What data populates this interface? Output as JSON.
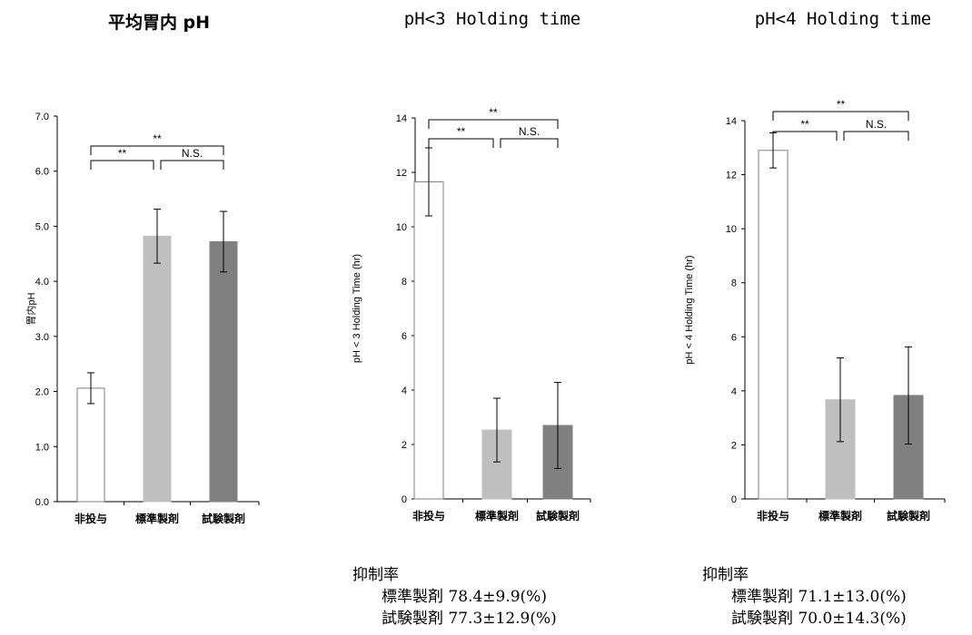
{
  "chart_data": [
    {
      "type": "bar",
      "title": "平均胃内 pH",
      "ylabel": "胃内pH",
      "xlabel": "",
      "categories": [
        "非投与",
        "標準製剤",
        "試験製剤"
      ],
      "values": [
        2.06,
        4.82,
        4.72
      ],
      "errors": [
        0.28,
        0.49,
        0.55
      ],
      "bar_colors": [
        "#ffffff",
        "#bfbfbf",
        "#808080"
      ],
      "ylim": [
        0,
        7
      ],
      "yticks": [
        0,
        1,
        2,
        3,
        4,
        5,
        6,
        7
      ],
      "ytick_labels": [
        "0.0",
        "1.0",
        "2.0",
        "3.0",
        "4.0",
        "5.0",
        "6.0",
        "7.0"
      ],
      "significance": [
        {
          "from": 0,
          "to": 1,
          "label": "**",
          "level": 0
        },
        {
          "from": 1,
          "to": 2,
          "label": "N.S.",
          "level": 0
        },
        {
          "from": 0,
          "to": 2,
          "label": "**",
          "level": 1
        }
      ]
    },
    {
      "type": "bar",
      "title": "pH<3 Holding time",
      "ylabel": "pH < 3 Holding Time (hr)",
      "xlabel": "",
      "categories": [
        "非投与",
        "標準製剤",
        "試験製剤"
      ],
      "values": [
        11.65,
        2.53,
        2.7
      ],
      "errors": [
        1.25,
        1.17,
        1.58
      ],
      "bar_colors": [
        "#ffffff",
        "#bfbfbf",
        "#808080"
      ],
      "ylim": [
        0,
        14
      ],
      "yticks": [
        0,
        2,
        4,
        6,
        8,
        10,
        12,
        14
      ],
      "ytick_labels": [
        "0",
        "2",
        "4",
        "6",
        "8",
        "10",
        "12",
        "14"
      ],
      "significance": [
        {
          "from": 0,
          "to": 1,
          "label": "**",
          "level": 0
        },
        {
          "from": 1,
          "to": 2,
          "label": "N.S.",
          "level": 0
        },
        {
          "from": 0,
          "to": 2,
          "label": "**",
          "level": 1
        }
      ]
    },
    {
      "type": "bar",
      "title": "pH<4 Holding time",
      "ylabel": "pH < 4 Holding Time (hr)",
      "xlabel": "",
      "categories": [
        "非投与",
        "標準製剤",
        "試験製剤"
      ],
      "values": [
        12.9,
        3.67,
        3.83
      ],
      "errors": [
        0.65,
        1.55,
        1.8
      ],
      "bar_colors": [
        "#ffffff",
        "#bfbfbf",
        "#808080"
      ],
      "ylim": [
        0,
        14
      ],
      "yticks": [
        0,
        2,
        4,
        6,
        8,
        10,
        12,
        14
      ],
      "ytick_labels": [
        "0",
        "2",
        "4",
        "6",
        "8",
        "10",
        "12",
        "14"
      ],
      "significance": [
        {
          "from": 0,
          "to": 1,
          "label": "**",
          "level": 0
        },
        {
          "from": 1,
          "to": 2,
          "label": "N.S.",
          "level": 0
        },
        {
          "from": 0,
          "to": 2,
          "label": "**",
          "level": 1
        }
      ]
    }
  ],
  "rates": [
    {
      "heading": "抑制率",
      "line1": "標準製剤 78.4±9.9(%)",
      "line2": "試験製剤 77.3±12.9(%)"
    },
    {
      "heading": "抑制率",
      "line1": "標準製剤 71.1±13.0(%)",
      "line2": "試験製剤 70.0±14.3(%)"
    }
  ]
}
